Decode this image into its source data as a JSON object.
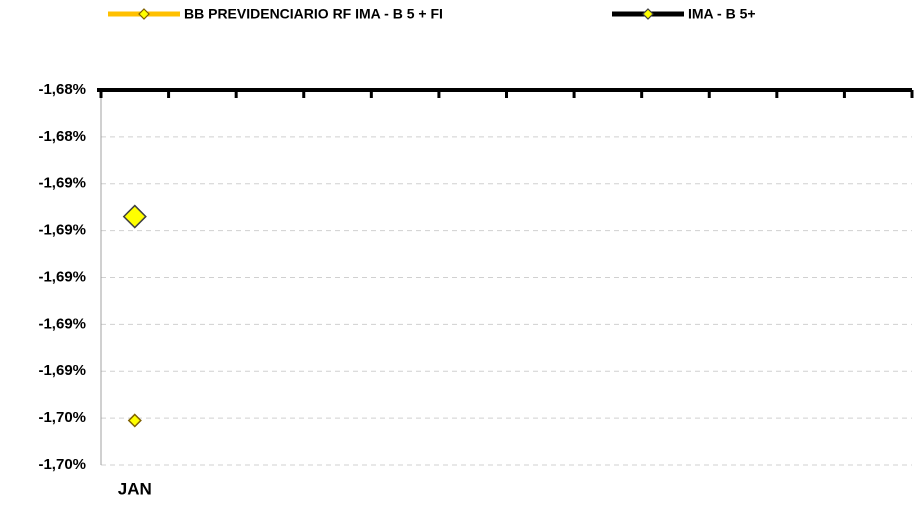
{
  "chart_data": {
    "type": "line",
    "categories": [
      "JAN",
      null,
      null,
      null,
      null,
      null,
      null,
      null,
      null,
      null,
      null,
      null
    ],
    "series": [
      {
        "name": "BB PREVIDENCIARIO RF IMA - B 5 + FI",
        "color": "#ffc000",
        "marker_fill": "#ffff00",
        "marker_edge": "#7f6000",
        "values": [
          -1.6961,
          null,
          null,
          null,
          null,
          null,
          null,
          null,
          null,
          null,
          null,
          null
        ]
      },
      {
        "name": "IMA - B 5+",
        "color": "#000000",
        "marker_fill": "#ffff00",
        "marker_edge": "#404040",
        "values": [
          -1.6874,
          null,
          null,
          null,
          null,
          null,
          null,
          null,
          null,
          null,
          null,
          null
        ]
      }
    ],
    "ylim": [
      -1.698,
      -1.682
    ],
    "yticks": [
      {
        "value": -1.698,
        "label": "-1,70%"
      },
      {
        "value": -1.696,
        "label": "-1,70%"
      },
      {
        "value": -1.694,
        "label": "-1,69%"
      },
      {
        "value": -1.692,
        "label": "-1,69%"
      },
      {
        "value": -1.69,
        "label": "-1,69%"
      },
      {
        "value": -1.688,
        "label": "-1,69%"
      },
      {
        "value": -1.686,
        "label": "-1,69%"
      },
      {
        "value": -1.684,
        "label": "-1,68%"
      },
      {
        "value": -1.682,
        "label": "-1,68%"
      }
    ],
    "grid": true,
    "legend": "top"
  }
}
